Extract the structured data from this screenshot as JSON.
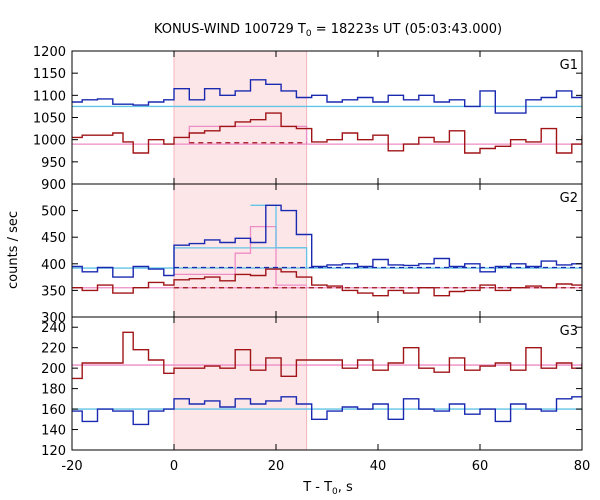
{
  "chart_data": {
    "type": "line",
    "title_prefix": "KONUS-WIND 100729 T",
    "title_sub": "0",
    "title_suffix": " = 18223s UT (05:03:43.000)",
    "xlabel_prefix": "T - T",
    "xlabel_sub": "0",
    "xlabel_suffix": ", s",
    "ylabel": "counts / sec",
    "xlim": [
      -20,
      80
    ],
    "xticks": [
      -20,
      0,
      20,
      40,
      60,
      80
    ],
    "interval": [
      0,
      26
    ],
    "colors": {
      "blue": "#1a2ab0",
      "red": "#a01418",
      "cyan": "#62c4e6",
      "pink": "#ee8cc6",
      "interval_fill": "#fde6e8"
    },
    "panels": [
      {
        "label": "G1",
        "ylim": [
          900,
          1200
        ],
        "yticks": [
          900,
          950,
          1000,
          1050,
          1100,
          1150,
          1200
        ],
        "blue_edges": [
          -20,
          -18,
          -15,
          -12,
          -8,
          -5,
          -2,
          0,
          3,
          6,
          9,
          12,
          15,
          18,
          21,
          24,
          27,
          30,
          33,
          36,
          39,
          42,
          45,
          48,
          51,
          54,
          57,
          60,
          63,
          66,
          69,
          72,
          75,
          78,
          80
        ],
        "blue_values": [
          1085,
          1090,
          1092,
          1080,
          1078,
          1085,
          1090,
          1115,
          1090,
          1115,
          1100,
          1110,
          1135,
          1125,
          1110,
          1095,
          1100,
          1085,
          1090,
          1095,
          1085,
          1100,
          1090,
          1100,
          1085,
          1090,
          1075,
          1110,
          1060,
          1060,
          1090,
          1095,
          1110,
          1095
        ],
        "red_edges": [
          -20,
          -18,
          -15,
          -12,
          -10,
          -8,
          -5,
          -2,
          0,
          3,
          6,
          9,
          12,
          15,
          18,
          21,
          24,
          27,
          30,
          33,
          36,
          39,
          42,
          45,
          48,
          51,
          54,
          57,
          60,
          63,
          66,
          69,
          72,
          75,
          78,
          80
        ],
        "red_values": [
          1005,
          1010,
          1010,
          1015,
          995,
          970,
          1000,
          990,
          1005,
          1015,
          1020,
          1030,
          1040,
          1045,
          1060,
          1030,
          1025,
          995,
          1000,
          1015,
          1000,
          1010,
          975,
          990,
          1005,
          995,
          1020,
          970,
          980,
          985,
          1000,
          995,
          1025,
          970,
          990,
          1010
        ],
        "cyan_value": 1075,
        "cyan_step": [],
        "pink_value": 990,
        "pink_step": [
          3,
          26,
          1030
        ],
        "dash": null
      },
      {
        "label": "G2",
        "ylim": [
          300,
          550
        ],
        "yticks": [
          300,
          350,
          400,
          450,
          500
        ],
        "blue_edges": [
          -20,
          -18,
          -15,
          -12,
          -8,
          -5,
          -2,
          0,
          3,
          6,
          9,
          12,
          15,
          18,
          21,
          24,
          27,
          30,
          33,
          36,
          39,
          42,
          45,
          48,
          51,
          54,
          57,
          60,
          63,
          66,
          69,
          72,
          75,
          78,
          80
        ],
        "blue_values": [
          395,
          385,
          393,
          375,
          395,
          390,
          378,
          435,
          438,
          445,
          440,
          448,
          440,
          510,
          500,
          455,
          395,
          398,
          400,
          395,
          408,
          398,
          397,
          400,
          410,
          395,
          400,
          385,
          395,
          400,
          395,
          405,
          398,
          400
        ],
        "red_edges": [
          -20,
          -18,
          -15,
          -12,
          -8,
          -5,
          -2,
          0,
          3,
          6,
          9,
          12,
          15,
          18,
          21,
          24,
          27,
          30,
          33,
          36,
          39,
          42,
          45,
          48,
          51,
          54,
          57,
          60,
          63,
          66,
          69,
          72,
          75,
          78,
          80
        ],
        "red_values": [
          355,
          350,
          360,
          345,
          355,
          365,
          360,
          370,
          372,
          375,
          368,
          380,
          378,
          390,
          385,
          375,
          360,
          358,
          350,
          345,
          340,
          350,
          345,
          355,
          340,
          348,
          350,
          360,
          350,
          355,
          358,
          355,
          362,
          360
        ],
        "cyan_value": 392,
        "cyan_step": [
          0,
          26,
          430
        ],
        "pink_value": 355,
        "pink_step": [],
        "pink_hump": {
          "edges": [
            0,
            12,
            15,
            20,
            26
          ],
          "values": [
            380,
            420,
            470,
            360
          ]
        },
        "cyan_hump": {
          "edges": [
            15,
            20,
            26
          ],
          "values": [
            510,
            430
          ]
        },
        "dash": {
          "from": 0,
          "to": 80,
          "red": 355,
          "blue": 393
        }
      },
      {
        "label": "G3",
        "ylim": [
          120,
          250
        ],
        "yticks": [
          120,
          140,
          160,
          180,
          200,
          220,
          240
        ],
        "blue_edges": [
          -20,
          -18,
          -15,
          -12,
          -8,
          -5,
          -2,
          0,
          3,
          6,
          9,
          12,
          15,
          18,
          21,
          24,
          27,
          30,
          33,
          36,
          39,
          42,
          45,
          48,
          51,
          54,
          57,
          60,
          63,
          66,
          69,
          72,
          75,
          78,
          80
        ],
        "blue_values": [
          158,
          148,
          160,
          158,
          145,
          158,
          160,
          170,
          165,
          168,
          162,
          170,
          165,
          168,
          172,
          165,
          150,
          158,
          162,
          160,
          165,
          150,
          170,
          160,
          158,
          165,
          155,
          160,
          148,
          165,
          160,
          158,
          170,
          172
        ],
        "red_edges": [
          -20,
          -18,
          -15,
          -12,
          -10,
          -8,
          -5,
          -2,
          0,
          3,
          6,
          9,
          12,
          15,
          18,
          21,
          24,
          27,
          30,
          33,
          36,
          39,
          42,
          45,
          48,
          51,
          54,
          57,
          60,
          63,
          66,
          69,
          72,
          75,
          78,
          80
        ],
        "red_values": [
          190,
          205,
          205,
          205,
          235,
          218,
          208,
          195,
          200,
          200,
          202,
          200,
          218,
          198,
          210,
          192,
          208,
          208,
          208,
          200,
          208,
          198,
          205,
          220,
          200,
          196,
          210,
          198,
          202,
          205,
          198,
          220,
          200,
          205,
          200,
          205
        ],
        "cyan_value": 160,
        "cyan_step": [],
        "pink_value": 203,
        "pink_step": [],
        "dash": null
      }
    ]
  }
}
